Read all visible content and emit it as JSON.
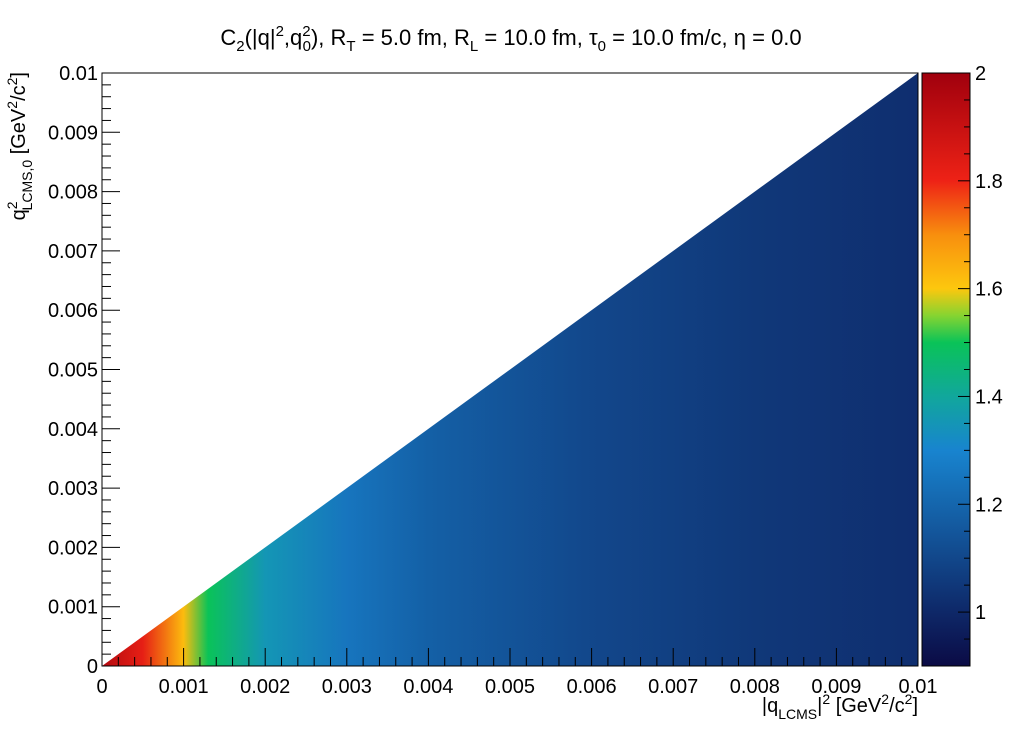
{
  "chart_data": {
    "type": "heatmap",
    "title": "C_2(|q|^2,q_0^2), R_T = 5.0 fm, R_L = 10.0 fm, τ_0 = 10.0 fm/c, η = 0.0",
    "title_parts": {
      "c": "C",
      "c_sub": "2",
      "open": "(|q|",
      "sq1": "2",
      "mid": ",q",
      "q0sup": "2",
      "q0sub": "0",
      "after": "), R",
      "rt_sub": "T",
      "rt_val": " = 5.0 fm, R",
      "rl_sub": "L",
      "rl_val": " = 10.0 fm, ",
      "tau": "τ",
      "tau_sub": "0",
      "tail": " = 10.0 fm/c, η = 0.0"
    },
    "xlabel": "|q_LCMS|^2 [GeV^2/c^2]",
    "xlabel_parts": {
      "a": "|q",
      "sub": "LCMS",
      "b": "|",
      "sup": "2",
      "c": " [GeV",
      "sup2": "2",
      "d": "/c",
      "sup3": "2",
      "e": "]"
    },
    "ylabel": "q^2_LCMS,0 [GeV^2/c^2]",
    "ylabel_parts": {
      "a": "q",
      "sup": "2",
      "sub": "LCMS,0",
      "b": " [GeV",
      "sup2": "2",
      "c": "/c",
      "sup3": "2",
      "d": "]"
    },
    "xlim": [
      0,
      0.01
    ],
    "ylim": [
      0,
      0.01
    ],
    "x_ticks": [
      "0",
      "0.001",
      "0.002",
      "0.003",
      "0.004",
      "0.005",
      "0.006",
      "0.007",
      "0.008",
      "0.009",
      "0.01"
    ],
    "y_ticks": [
      "0",
      "0.001",
      "0.002",
      "0.003",
      "0.004",
      "0.005",
      "0.006",
      "0.007",
      "0.008",
      "0.009",
      "0.01"
    ],
    "filled_region": "y <= x",
    "c2_vs_x": [
      {
        "x": 0.0,
        "c2": 1.95
      },
      {
        "x": 0.0005,
        "c2": 1.82
      },
      {
        "x": 0.001,
        "c2": 1.62
      },
      {
        "x": 0.0013,
        "c2": 1.5
      },
      {
        "x": 0.002,
        "c2": 1.35
      },
      {
        "x": 0.003,
        "c2": 1.25
      },
      {
        "x": 0.004,
        "c2": 1.18
      },
      {
        "x": 0.006,
        "c2": 1.1
      },
      {
        "x": 0.008,
        "c2": 1.05
      },
      {
        "x": 0.01,
        "c2": 1.02
      }
    ],
    "colorbar": {
      "range": [
        0.9,
        2.0
      ],
      "ticks": [
        "1",
        "1.2",
        "1.4",
        "1.6",
        "1.8",
        "2"
      ],
      "stops": [
        {
          "v": 0.9,
          "color": "#0b0b45"
        },
        {
          "v": 1.0,
          "color": "#0e2868"
        },
        {
          "v": 1.2,
          "color": "#1566ad"
        },
        {
          "v": 1.3,
          "color": "#1884cf"
        },
        {
          "v": 1.4,
          "color": "#11a79c"
        },
        {
          "v": 1.5,
          "color": "#0ac358"
        },
        {
          "v": 1.55,
          "color": "#86d431"
        },
        {
          "v": 1.6,
          "color": "#fdc70e"
        },
        {
          "v": 1.7,
          "color": "#f88f0e"
        },
        {
          "v": 1.8,
          "color": "#ee2216"
        },
        {
          "v": 2.0,
          "color": "#a0000d"
        }
      ]
    },
    "grid": false
  }
}
